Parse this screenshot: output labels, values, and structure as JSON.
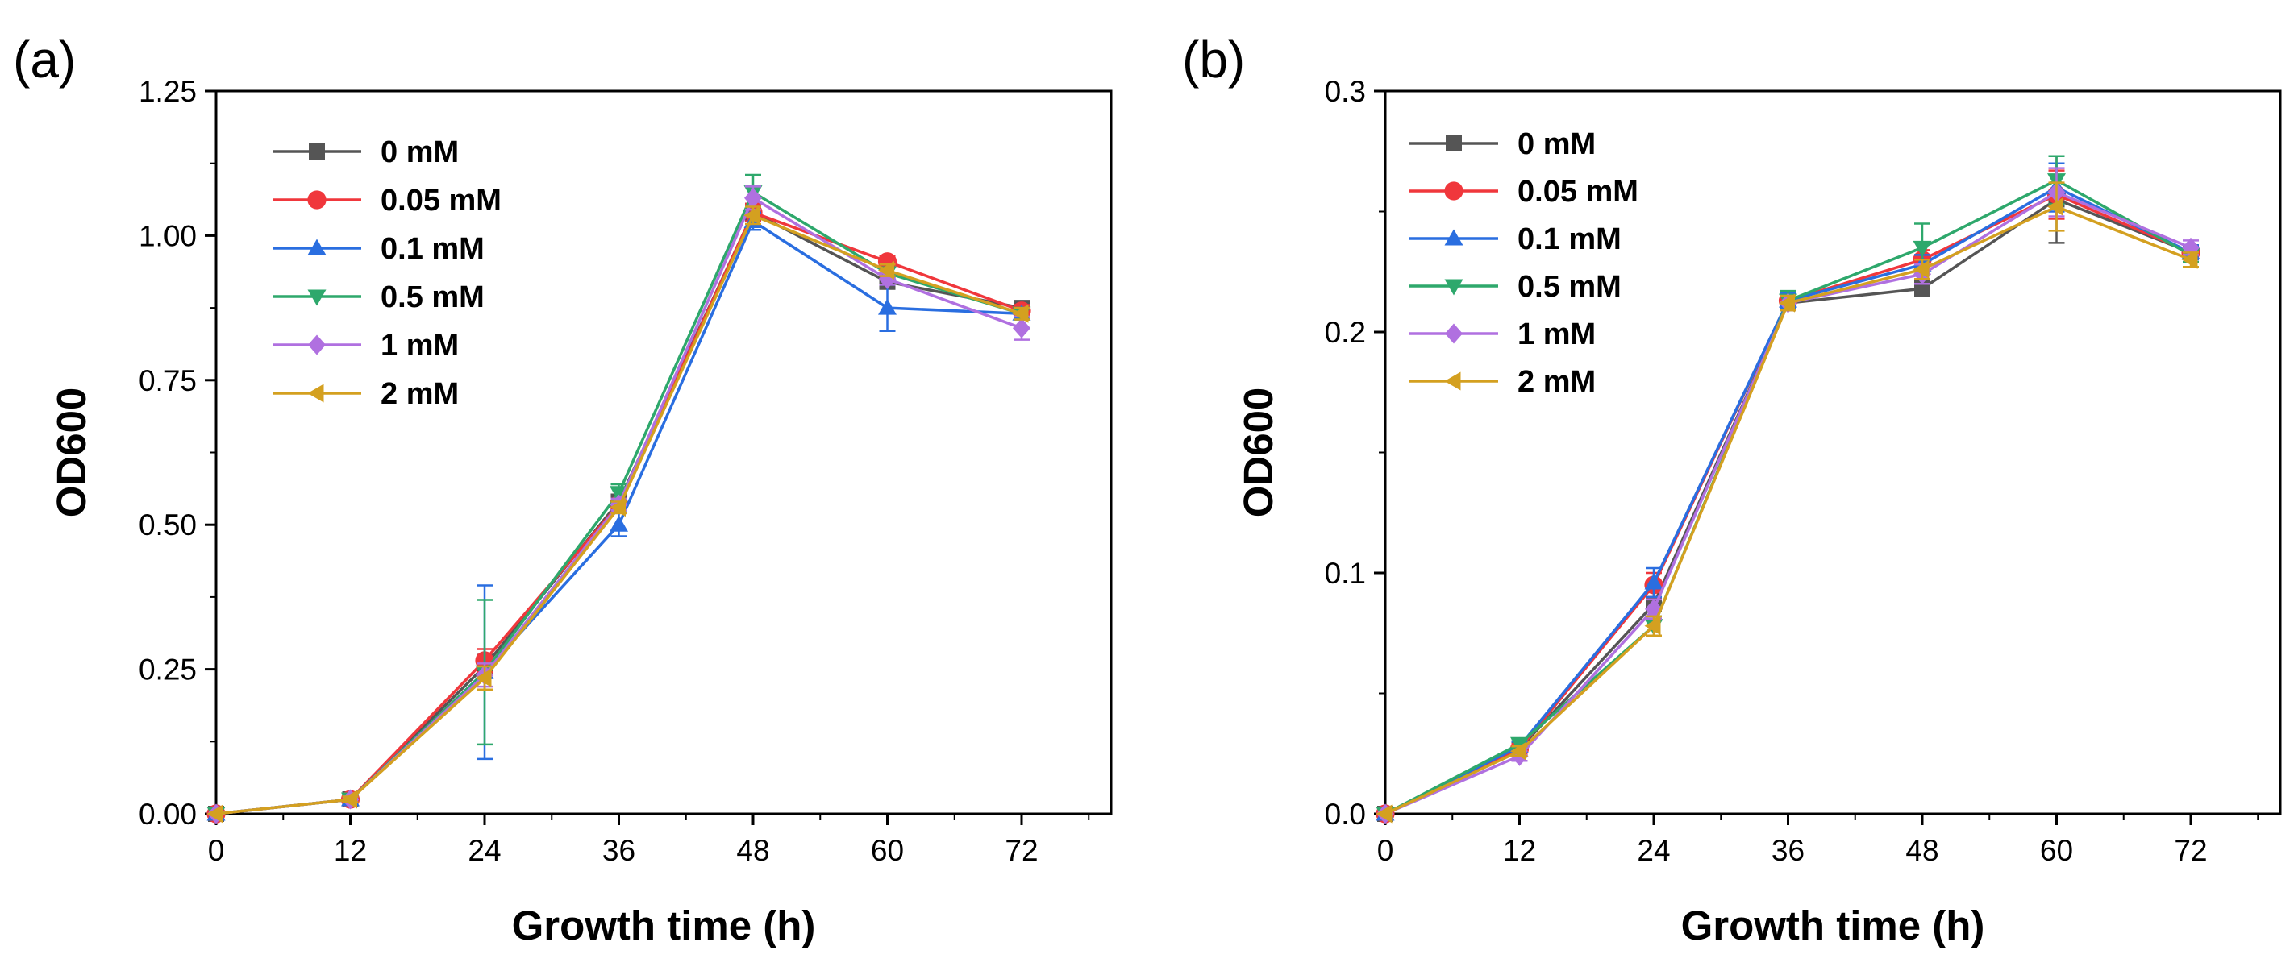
{
  "chart_data": [
    {
      "type": "line",
      "panel_label": "(a)",
      "title": "",
      "xlabel": "Growth time (h)",
      "ylabel": "OD600",
      "xlim": [
        0,
        80
      ],
      "ylim": [
        0,
        1.25
      ],
      "x_ticks": [
        0,
        12,
        24,
        36,
        48,
        60,
        72
      ],
      "x_tick_labels": [
        "0",
        "12",
        "24",
        "36",
        "48",
        "60",
        "72"
      ],
      "y_ticks": [
        0,
        0.25,
        0.5,
        0.75,
        1.0,
        1.25
      ],
      "y_tick_labels": [
        "0.00",
        "0.25",
        "0.50",
        "0.75",
        "1.00",
        "1.25"
      ],
      "grid": false,
      "legend_position": "top-left",
      "x": [
        0,
        12,
        24,
        36,
        48,
        60,
        72
      ],
      "series": [
        {
          "name": "0 mM",
          "color": "#555555",
          "marker": "square",
          "values": [
            0.0,
            0.025,
            0.255,
            0.54,
            1.04,
            0.92,
            0.875
          ],
          "errors": [
            0,
            0.005,
            0.02,
            0.01,
            0.015,
            0.01,
            0.01
          ]
        },
        {
          "name": "0.05 mM",
          "color": "#f0373c",
          "marker": "circle",
          "values": [
            0.0,
            0.025,
            0.265,
            0.535,
            1.04,
            0.955,
            0.87
          ],
          "errors": [
            0,
            0.005,
            0.02,
            0.01,
            0.015,
            0.01,
            0.01
          ]
        },
        {
          "name": "0.1 mM",
          "color": "#2a6ee0",
          "marker": "triangle-up",
          "values": [
            0.0,
            0.025,
            0.245,
            0.5,
            1.025,
            0.875,
            0.865
          ],
          "errors": [
            0,
            0.005,
            0.15,
            0.02,
            0.015,
            0.04,
            0.01
          ]
        },
        {
          "name": "0.5 mM",
          "color": "#2ea86c",
          "marker": "triangle-down",
          "values": [
            0.0,
            0.025,
            0.245,
            0.555,
            1.075,
            0.935,
            0.865
          ],
          "errors": [
            0,
            0.005,
            0.125,
            0.015,
            0.03,
            0.01,
            0.01
          ]
        },
        {
          "name": "1 mM",
          "color": "#b070e0",
          "marker": "diamond",
          "values": [
            0.0,
            0.025,
            0.24,
            0.535,
            1.065,
            0.925,
            0.84
          ],
          "errors": [
            0,
            0.005,
            0.02,
            0.01,
            0.02,
            0.01,
            0.02
          ]
        },
        {
          "name": "2 mM",
          "color": "#d4a020",
          "marker": "triangle-left",
          "values": [
            0.0,
            0.025,
            0.235,
            0.53,
            1.035,
            0.94,
            0.865
          ],
          "errors": [
            0,
            0.005,
            0.02,
            0.01,
            0.015,
            0.01,
            0.01
          ]
        }
      ]
    },
    {
      "type": "line",
      "panel_label": "(b)",
      "title": "",
      "xlabel": "Growth time (h)",
      "ylabel": "OD600",
      "xlim": [
        0,
        80
      ],
      "ylim": [
        0,
        0.3
      ],
      "x_ticks": [
        0,
        12,
        24,
        36,
        48,
        60,
        72
      ],
      "x_tick_labels": [
        "0",
        "12",
        "24",
        "36",
        "48",
        "60",
        "72"
      ],
      "y_ticks": [
        0,
        0.1,
        0.2,
        0.3
      ],
      "y_tick_labels": [
        "0.0",
        "0.1",
        "0.2",
        "0.3"
      ],
      "grid": false,
      "legend_position": "top-left",
      "x": [
        0,
        12,
        24,
        36,
        48,
        60,
        72
      ],
      "series": [
        {
          "name": "0 mM",
          "color": "#555555",
          "marker": "square",
          "values": [
            0.0,
            0.027,
            0.087,
            0.212,
            0.218,
            0.255,
            0.233
          ],
          "errors": [
            0,
            0.002,
            0.005,
            0.003,
            0.003,
            0.018,
            0.003
          ]
        },
        {
          "name": "0.05 mM",
          "color": "#f0373c",
          "marker": "circle",
          "values": [
            0.0,
            0.027,
            0.095,
            0.213,
            0.23,
            0.257,
            0.233
          ],
          "errors": [
            0,
            0.002,
            0.005,
            0.003,
            0.004,
            0.01,
            0.003
          ]
        },
        {
          "name": "0.1 mM",
          "color": "#2a6ee0",
          "marker": "triangle-up",
          "values": [
            0.0,
            0.028,
            0.096,
            0.213,
            0.228,
            0.26,
            0.233
          ],
          "errors": [
            0,
            0.002,
            0.006,
            0.003,
            0.004,
            0.01,
            0.003
          ]
        },
        {
          "name": "0.5 mM",
          "color": "#2ea86c",
          "marker": "triangle-down",
          "values": [
            0.0,
            0.029,
            0.078,
            0.213,
            0.235,
            0.263,
            0.232
          ],
          "errors": [
            0,
            0.002,
            0.004,
            0.004,
            0.01,
            0.01,
            0.003
          ]
        },
        {
          "name": "1 mM",
          "color": "#b070e0",
          "marker": "diamond",
          "values": [
            0.0,
            0.024,
            0.085,
            0.212,
            0.224,
            0.258,
            0.235
          ],
          "errors": [
            0,
            0.002,
            0.004,
            0.003,
            0.004,
            0.01,
            0.003
          ]
        },
        {
          "name": "2 mM",
          "color": "#d4a020",
          "marker": "triangle-left",
          "values": [
            0.0,
            0.026,
            0.078,
            0.212,
            0.226,
            0.252,
            0.23
          ],
          "errors": [
            0,
            0.002,
            0.004,
            0.003,
            0.004,
            0.01,
            0.003
          ]
        }
      ]
    }
  ]
}
